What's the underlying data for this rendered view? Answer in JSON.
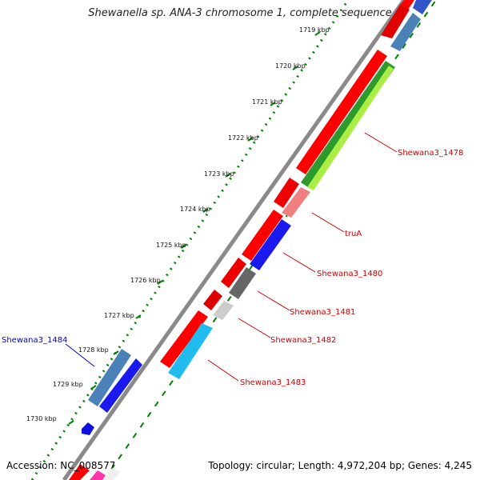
{
  "title": "Shewanella sp. ANA-3 chromosome 1, complete sequence",
  "footer": {
    "accession": "Accession: NC_008577",
    "summary": "Topology: circular; Length: 4,972,204 bp; Genes: 4,245"
  },
  "scale_labels": [
    "1719 kbp",
    "1720 kbp",
    "1721 kbp",
    "1722 kbp",
    "1723 kbp",
    "1724 kbp",
    "1725 kbp",
    "1726 kbp",
    "1727 kbp",
    "1728 kbp",
    "1729 kbp",
    "1730 kbp"
  ],
  "gene_labels": [
    "Shewana3_1478",
    "truA",
    "Shewana3_1480",
    "Shewana3_1481",
    "Shewana3_1482",
    "Shewana3_1483",
    "Shewana3_1484"
  ],
  "colors": {
    "cds": "#ff0000",
    "backbone": "#888888",
    "ticks": "#008000",
    "label_red": "#cc0000",
    "label_blue": "#0000cc"
  }
}
